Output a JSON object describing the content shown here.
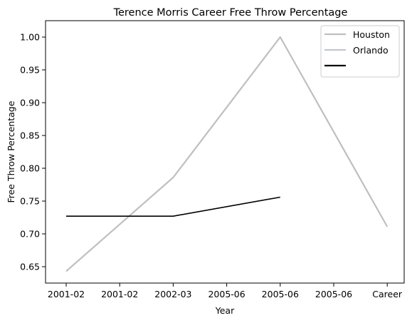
{
  "chart_data": {
    "type": "line",
    "title": "Terence Morris Career Free Throw Percentage",
    "xlabel": "Year",
    "ylabel": "Free Throw Percentage",
    "categories": [
      "2001-02",
      "2001-02",
      "2002-03",
      "2005-06",
      "2005-06",
      "2005-06",
      "Career"
    ],
    "ylim": [
      0.625,
      1.025
    ],
    "yticks": [
      0.65,
      0.7,
      0.75,
      0.8,
      0.85,
      0.9,
      0.95,
      1.0
    ],
    "ytick_labels": [
      "0.65",
      "0.70",
      "0.75",
      "0.80",
      "0.85",
      "0.90",
      "0.95",
      "1.00"
    ],
    "grid": false,
    "legend_position": "top-right",
    "series": [
      {
        "name": "Houston",
        "color": "#bfbfbf",
        "points": [
          [
            0,
            0.643
          ],
          [
            2,
            0.786
          ],
          [
            4,
            1.0
          ],
          [
            6,
            0.711
          ]
        ]
      },
      {
        "name": "Orlando",
        "color": "#c0c8d0",
        "points": []
      },
      {
        "name": "",
        "color": "#000000",
        "points": [
          [
            0,
            0.727
          ],
          [
            2,
            0.727
          ],
          [
            4,
            0.756
          ]
        ]
      }
    ]
  }
}
